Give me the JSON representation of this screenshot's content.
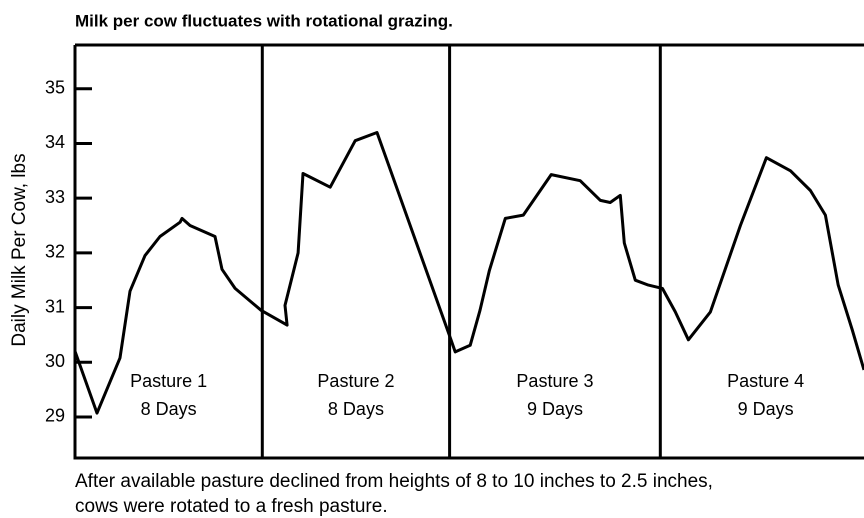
{
  "chart_data": {
    "type": "line",
    "title": "Milk per cow fluctuates with rotational grazing.",
    "y_label": "Daily Milk Per Cow, lbs",
    "caption": [
      "After available pasture declined from heights of 8 to 10 inches to 2.5 inches,",
      "cows were rotated to a fresh pasture."
    ],
    "x": [
      0,
      0.94,
      1.92,
      2.35,
      2.99,
      3.63,
      4.49,
      4.57,
      4.91,
      5.98,
      6.28,
      6.84,
      7.95,
      9.06,
      8.97,
      9.53,
      9.74,
      10.9,
      11.97,
      12.9,
      16.07,
      16.24,
      16.88,
      17.3,
      17.7,
      18.38,
      19.15,
      20.34,
      21.58,
      22.44,
      22.86,
      23.29,
      23.46,
      23.93,
      24.49,
      25.09,
      25.64,
      26.2,
      27.14,
      28.42,
      29.53,
      30.56,
      31.41,
      32.05,
      32.6,
      33.2,
      33.7
    ],
    "series": [
      {
        "name": "Daily milk per cow",
        "color": "#000000",
        "values": [
          30.2,
          29.07,
          30.08,
          31.3,
          31.95,
          32.3,
          32.56,
          32.63,
          32.5,
          32.3,
          31.7,
          31.35,
          30.95,
          30.68,
          31.04,
          32.0,
          33.45,
          33.2,
          34.05,
          34.2,
          30.4,
          30.19,
          30.31,
          30.95,
          31.68,
          32.63,
          32.69,
          33.43,
          33.32,
          32.96,
          32.92,
          33.05,
          32.18,
          31.5,
          31.41,
          31.35,
          30.92,
          30.41,
          30.92,
          32.5,
          33.74,
          33.5,
          33.14,
          32.69,
          31.41,
          30.59,
          29.86
        ]
      }
    ],
    "xlim": [
      0,
      33.7
    ],
    "ylim": [
      28.25,
      35.8
    ],
    "yticks": [
      29,
      30,
      31,
      32,
      33,
      34,
      35
    ],
    "pastures": [
      {
        "name": "Pasture 1",
        "duration": "8 Days",
        "start": 0,
        "end": 8
      },
      {
        "name": "Pasture 2",
        "duration": "8 Days",
        "start": 8,
        "end": 16
      },
      {
        "name": "Pasture 3",
        "duration": "9 Days",
        "start": 16,
        "end": 25
      },
      {
        "name": "Pasture 4",
        "duration": "9 Days",
        "start": 25,
        "end": 34
      }
    ]
  }
}
